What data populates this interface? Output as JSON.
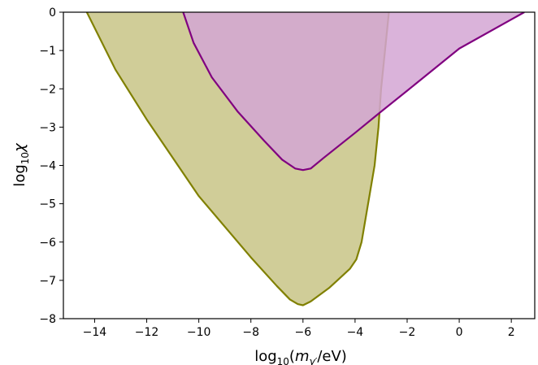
{
  "chart_data": {
    "type": "area",
    "xlabel": {
      "prefix": "log",
      "sub": "10",
      "open": "(",
      "var": "m",
      "var_sub": "γ′",
      "unit": "/eV)"
    },
    "ylabel": {
      "prefix": "log",
      "sub": "10",
      "var": "χ"
    },
    "xlim": [
      -15.2,
      2.9
    ],
    "ylim": [
      -8,
      0
    ],
    "xticks": [
      -14,
      -12,
      -10,
      -8,
      -6,
      -4,
      -2,
      0,
      2
    ],
    "yticks": [
      0,
      -1,
      -2,
      -3,
      -4,
      -5,
      -6,
      -7,
      -8
    ],
    "xtick_labels": [
      "−14",
      "−12",
      "−10",
      "−8",
      "−6",
      "−4",
      "−2",
      "0",
      "2"
    ],
    "ytick_labels": [
      "0",
      "−1",
      "−2",
      "−3",
      "−4",
      "−5",
      "−6",
      "−7",
      "−8"
    ],
    "grid": false,
    "series": [
      {
        "key": "olive",
        "fill": "#d0cd98",
        "stroke": "#808000",
        "points": [
          [
            -14.3,
            0
          ],
          [
            -13.2,
            -1.5
          ],
          [
            -12.0,
            -2.8
          ],
          [
            -10.0,
            -4.8
          ],
          [
            -8.0,
            -6.4
          ],
          [
            -7.0,
            -7.15
          ],
          [
            -6.5,
            -7.5
          ],
          [
            -6.2,
            -7.62
          ],
          [
            -6.0,
            -7.65
          ],
          [
            -5.7,
            -7.55
          ],
          [
            -5.0,
            -7.2
          ],
          [
            -4.6,
            -6.95
          ],
          [
            -4.2,
            -6.7
          ],
          [
            -3.95,
            -6.45
          ],
          [
            -3.75,
            -6.0
          ],
          [
            -3.5,
            -5.0
          ],
          [
            -3.25,
            -4.0
          ],
          [
            -3.1,
            -3.0
          ],
          [
            -3.0,
            -2.0
          ],
          [
            -2.85,
            -1.0
          ],
          [
            -2.7,
            0
          ]
        ]
      },
      {
        "key": "purple",
        "fill": "#d4a6d4",
        "fill_opacity": 0.85,
        "stroke": "#800080",
        "points": [
          [
            -10.6,
            0
          ],
          [
            -10.2,
            -0.8
          ],
          [
            -9.5,
            -1.7
          ],
          [
            -8.5,
            -2.6
          ],
          [
            -7.5,
            -3.35
          ],
          [
            -6.8,
            -3.85
          ],
          [
            -6.3,
            -4.08
          ],
          [
            -6.0,
            -4.12
          ],
          [
            -5.7,
            -4.08
          ],
          [
            -5.2,
            -3.8
          ],
          [
            -4.0,
            -3.15
          ],
          [
            -3.1,
            -2.65
          ],
          [
            -2.0,
            -2.05
          ],
          [
            0.0,
            -0.95
          ],
          [
            2.5,
            0
          ]
        ]
      }
    ]
  }
}
